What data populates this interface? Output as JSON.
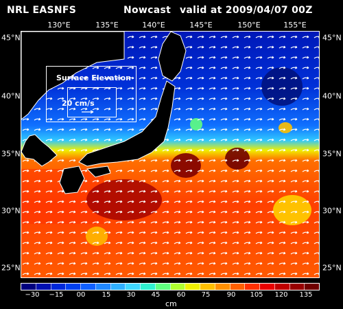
{
  "header": {
    "left": "NRL EASNFS",
    "middle": "Nowcast",
    "right": "valid at 2009/04/07 00Z"
  },
  "lon_labels": [
    "130°E",
    "135°E",
    "140°E",
    "145°E",
    "150°E",
    "155°E"
  ],
  "lat_labels": [
    "45°N",
    "40°N",
    "35°N",
    "30°N",
    "25°N"
  ],
  "legend": {
    "title": "Surface Elevation",
    "speed": "20 cm/s"
  },
  "colorbar": {
    "colors": [
      "#00007f",
      "#0010b0",
      "#0028d8",
      "#0040f0",
      "#1060ff",
      "#2088ff",
      "#30b0ff",
      "#40d8ff",
      "#30f0d0",
      "#60ff80",
      "#b0ff30",
      "#f0f000",
      "#ffc000",
      "#ff9000",
      "#ff6000",
      "#ff3000",
      "#e80000",
      "#c00000",
      "#980000",
      "#700000"
    ],
    "ticks": [
      "−30",
      "−15",
      "00",
      "15",
      "30",
      "45",
      "60",
      "75",
      "90",
      "105",
      "120",
      "135"
    ],
    "unit": "cm"
  },
  "colors": {
    "background": "#000000",
    "land": "#000000",
    "coast": "#ffffff"
  }
}
